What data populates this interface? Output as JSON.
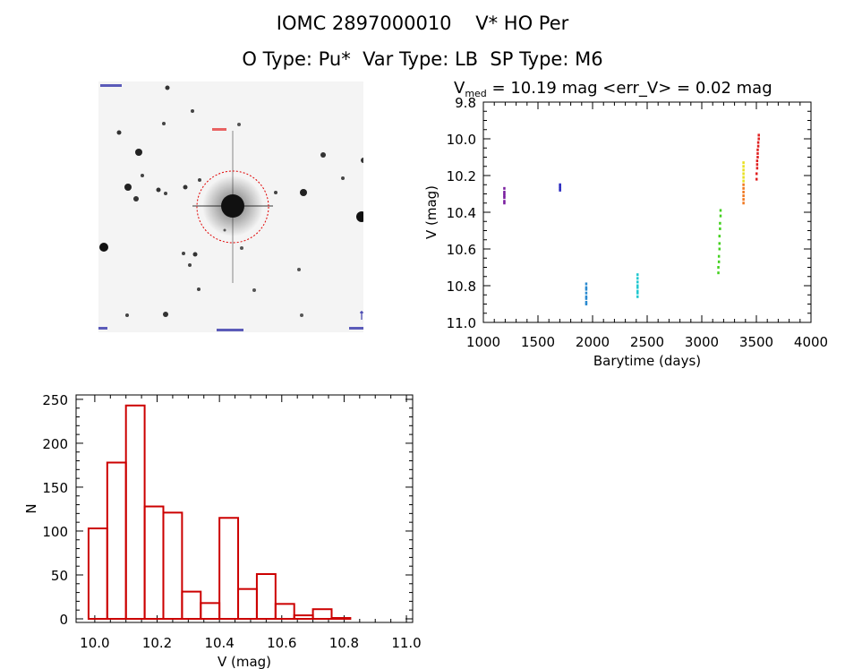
{
  "header": {
    "line1": "IOMC 2897000010    V* HO Per",
    "line2": "O Type: Pu*  Var Type: LB  SP Type: M6"
  },
  "finder_chart": {
    "description_label": "",
    "colors": {
      "background": "#f4f4f4",
      "stars": "#111111",
      "circle": "#e00000",
      "labels": "#1a1aa0"
    }
  },
  "chart_data": [
    {
      "type": "scatter",
      "title": "V_med = 10.19 mag <err_V> = 0.02 mag",
      "title_parts": {
        "prefix": "V",
        "subscript": "med",
        "rest": " = 10.19 mag <err_V> = 0.02 mag"
      },
      "xlabel": "Barytime (days)",
      "ylabel": "V (mag)",
      "xlim": [
        1000,
        4000
      ],
      "ylim": [
        11.0,
        9.8
      ],
      "y_inverted": true,
      "x_ticks": [
        "1000",
        "1500",
        "2000",
        "2500",
        "3000",
        "3500",
        "4000"
      ],
      "x_tick_values": [
        1000,
        1500,
        2000,
        2500,
        3000,
        3500,
        4000
      ],
      "y_ticks": [
        "9.8",
        "10.0",
        "10.2",
        "10.4",
        "10.6",
        "10.8",
        "11.0"
      ],
      "y_tick_values": [
        9.8,
        10.0,
        10.2,
        10.4,
        10.6,
        10.8,
        11.0
      ],
      "series": [
        {
          "color": "#7a1fa0",
          "x": [
            1190,
            1190,
            1190,
            1190,
            1190,
            1190,
            1190
          ],
          "y": [
            10.27,
            10.29,
            10.3,
            10.31,
            10.32,
            10.34,
            10.35
          ]
        },
        {
          "color": "#2a2ac0",
          "x": [
            1700,
            1700,
            1700,
            1700
          ],
          "y": [
            10.25,
            10.26,
            10.27,
            10.28
          ]
        },
        {
          "color": "#2a8ad0",
          "x": [
            1940,
            1940,
            1940,
            1940,
            1940,
            1940,
            1940,
            1940
          ],
          "y": [
            10.79,
            10.81,
            10.82,
            10.84,
            10.86,
            10.87,
            10.89,
            10.9
          ]
        },
        {
          "color": "#20c8d0",
          "x": [
            2410,
            2410,
            2410,
            2410,
            2410,
            2410,
            2410,
            2410
          ],
          "y": [
            10.74,
            10.76,
            10.78,
            10.8,
            10.81,
            10.83,
            10.84,
            10.86
          ]
        },
        {
          "color": "#44d020",
          "x": [
            3150,
            3150,
            3155,
            3155,
            3160,
            3160,
            3160,
            3165,
            3165,
            3170,
            3170
          ],
          "y": [
            10.73,
            10.7,
            10.67,
            10.64,
            10.6,
            10.57,
            10.53,
            10.49,
            10.46,
            10.42,
            10.39
          ]
        },
        {
          "color": "#e8e020",
          "x": [
            3380,
            3380,
            3380,
            3380,
            3380,
            3380
          ],
          "y": [
            10.13,
            10.15,
            10.17,
            10.19,
            10.21,
            10.23
          ]
        },
        {
          "color": "#f07820",
          "x": [
            3380,
            3380,
            3380,
            3380,
            3380,
            3380
          ],
          "y": [
            10.25,
            10.27,
            10.29,
            10.31,
            10.33,
            10.35
          ]
        },
        {
          "color": "#e02020",
          "x": [
            3500,
            3500,
            3505,
            3505,
            3505,
            3510,
            3510,
            3510,
            3515,
            3515,
            3520,
            3520
          ],
          "y": [
            10.22,
            10.19,
            10.16,
            10.14,
            10.12,
            10.1,
            10.08,
            10.06,
            10.04,
            10.02,
            10.0,
            9.98
          ]
        }
      ]
    },
    {
      "type": "bar",
      "xlabel": "V (mag)",
      "ylabel": "N",
      "xlim": [
        9.94,
        11.02
      ],
      "ylim": [
        0,
        255
      ],
      "x_ticks": [
        "10.0",
        "10.2",
        "10.4",
        "10.6",
        "10.8",
        "11.0"
      ],
      "x_tick_values": [
        10.0,
        10.2,
        10.4,
        10.6,
        10.8,
        11.0
      ],
      "y_ticks": [
        "0",
        "50",
        "100",
        "150",
        "200",
        "250"
      ],
      "y_tick_values": [
        0,
        50,
        100,
        150,
        200,
        250
      ],
      "bin_edges": [
        9.98,
        10.04,
        10.1,
        10.16,
        10.22,
        10.28,
        10.34,
        10.4,
        10.46,
        10.52,
        10.58,
        10.64,
        10.7,
        10.76,
        10.82,
        10.88,
        10.94
      ],
      "values": [
        103,
        178,
        243,
        128,
        121,
        31,
        18,
        115,
        34,
        51,
        17,
        4,
        11,
        1,
        0,
        0
      ],
      "color": "#cc0000"
    }
  ]
}
